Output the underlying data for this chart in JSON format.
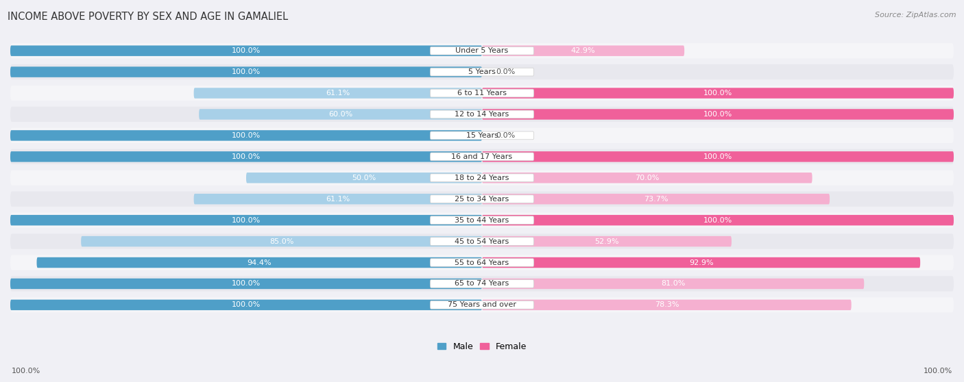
{
  "title": "INCOME ABOVE POVERTY BY SEX AND AGE IN GAMALIEL",
  "source": "Source: ZipAtlas.com",
  "categories": [
    "Under 5 Years",
    "5 Years",
    "6 to 11 Years",
    "12 to 14 Years",
    "15 Years",
    "16 and 17 Years",
    "18 to 24 Years",
    "25 to 34 Years",
    "35 to 44 Years",
    "45 to 54 Years",
    "55 to 64 Years",
    "65 to 74 Years",
    "75 Years and over"
  ],
  "male_values": [
    100.0,
    100.0,
    61.1,
    60.0,
    100.0,
    100.0,
    50.0,
    61.1,
    100.0,
    85.0,
    94.4,
    100.0,
    100.0
  ],
  "female_values": [
    42.9,
    0.0,
    100.0,
    100.0,
    0.0,
    100.0,
    70.0,
    73.7,
    100.0,
    52.9,
    92.9,
    81.0,
    78.3
  ],
  "male_color_dark": "#4f9fc8",
  "male_color_light": "#a8d0e8",
  "female_color_dark": "#f0609a",
  "female_color_light": "#f5b0d0",
  "row_bg_odd": "#e8e8ee",
  "row_bg_even": "#f5f5f8",
  "label_white": "#ffffff",
  "label_dark": "#555555",
  "background_color": "#f0f0f5",
  "axis_label_bottom_left": "100.0%",
  "axis_label_bottom_right": "100.0%",
  "legend_male": "Male",
  "legend_female": "Female",
  "title_fontsize": 10.5,
  "source_fontsize": 8,
  "label_fontsize": 8,
  "category_fontsize": 8
}
